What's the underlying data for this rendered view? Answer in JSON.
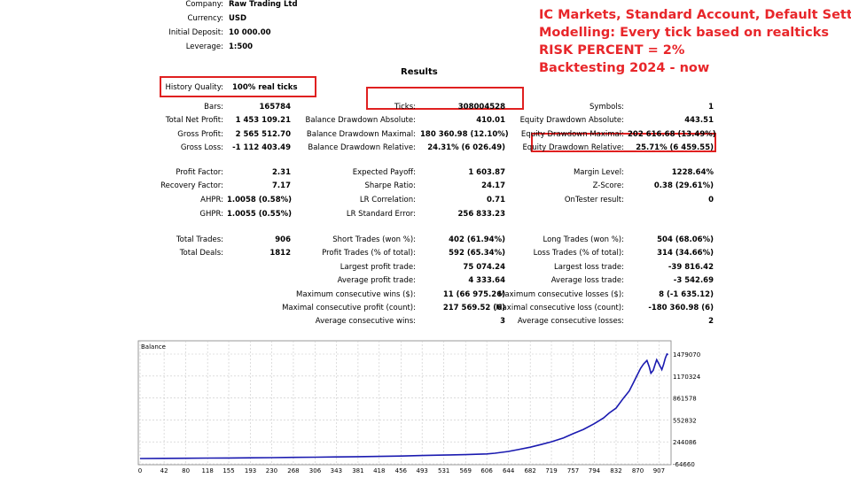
{
  "header": {
    "company_label": "Company:",
    "company": "Raw Trading Ltd",
    "currency_label": "Currency:",
    "currency": "USD",
    "deposit_label": "Initial Deposit:",
    "deposit": "10 000.00",
    "leverage_label": "Leverage:",
    "leverage": "1:500"
  },
  "notes": {
    "line1": "IC Markets, Standard Account, Default Setting",
    "line2": "Modelling: Every tick based on realticks",
    "line3": "RISK PERCENT = 2%",
    "line4": "Backtesting 2024 - now",
    "color": "#e8262a"
  },
  "results_title": "Results",
  "history_quality": {
    "label": "History Quality:",
    "value": "100% real ticks"
  },
  "col1": [
    {
      "label": "Bars:",
      "value": "165784"
    },
    {
      "label": "Total Net Profit:",
      "value": "1 453 109.21"
    },
    {
      "label": "Gross Profit:",
      "value": "2 565 512.70"
    },
    {
      "label": "Gross Loss:",
      "value": "-1 112 403.49"
    },
    {
      "label": "Profit Factor:",
      "value": "2.31"
    },
    {
      "label": "Recovery Factor:",
      "value": "7.17"
    },
    {
      "label": "AHPR:",
      "value": "1.0058 (0.58%)"
    },
    {
      "label": "GHPR:",
      "value": "1.0055 (0.55%)"
    },
    {
      "label": "Total Trades:",
      "value": "906"
    },
    {
      "label": "Total Deals:",
      "value": "1812"
    }
  ],
  "col2": [
    {
      "label": "Ticks:",
      "value": "308004528"
    },
    {
      "label": "Balance Drawdown Absolute:",
      "value": "410.01"
    },
    {
      "label": "Balance Drawdown Maximal:",
      "value": "180 360.98 (12.10%)"
    },
    {
      "label": "Balance Drawdown Relative:",
      "value": "24.31% (6 026.49)"
    },
    {
      "label": "Expected Payoff:",
      "value": "1 603.87"
    },
    {
      "label": "Sharpe Ratio:",
      "value": "24.17"
    },
    {
      "label": "LR Correlation:",
      "value": "0.71"
    },
    {
      "label": "LR Standard Error:",
      "value": "256 833.23"
    },
    {
      "label": "Short Trades (won %):",
      "value": "402 (61.94%)"
    },
    {
      "label": "Profit Trades (% of total):",
      "value": "592 (65.34%)"
    },
    {
      "label": "Largest profit trade:",
      "value": "75 074.24"
    },
    {
      "label": "Average profit trade:",
      "value": "4 333.64"
    },
    {
      "label": "Maximum consecutive wins ($):",
      "value": "11 (66 975.26)"
    },
    {
      "label": "Maximal consecutive profit (count):",
      "value": "217 569.52 (6)"
    },
    {
      "label": "Average consecutive wins:",
      "value": "3"
    }
  ],
  "col3": [
    {
      "label": "Symbols:",
      "value": "1"
    },
    {
      "label": "Equity Drawdown Absolute:",
      "value": "443.51"
    },
    {
      "label": "Equity Drawdown Maximal:",
      "value": "202 616.68 (13.49%)"
    },
    {
      "label": "Equity Drawdown Relative:",
      "value": "25.71% (6 459.55)"
    },
    {
      "label": "Margin Level:",
      "value": "1228.64%"
    },
    {
      "label": "Z-Score:",
      "value": "0.38 (29.61%)"
    },
    {
      "label": "OnTester result:",
      "value": "0"
    },
    {
      "label": "Long Trades (won %):",
      "value": "504 (68.06%)"
    },
    {
      "label": "Loss Trades (% of total):",
      "value": "314 (34.66%)"
    },
    {
      "label": "Largest loss trade:",
      "value": "-39 816.42"
    },
    {
      "label": "Average loss trade:",
      "value": "-3 542.69"
    },
    {
      "label": "Maximum consecutive losses ($):",
      "value": "8 (-1 635.12)"
    },
    {
      "label": "Maximal consecutive loss (count):",
      "value": "-180 360.98 (6)"
    },
    {
      "label": "Average consecutive losses:",
      "value": "2"
    }
  ],
  "chart_data": {
    "type": "line",
    "title": "Balance",
    "xlabel": "",
    "ylabel": "",
    "x_ticks": [
      "0",
      "42",
      "80",
      "118",
      "155",
      "193",
      "230",
      "268",
      "306",
      "343",
      "381",
      "418",
      "456",
      "493",
      "531",
      "569",
      "606",
      "644",
      "682",
      "719",
      "757",
      "794",
      "832",
      "870",
      "907"
    ],
    "y_ticks": [
      "1479070",
      "1170324",
      "861578",
      "552832",
      "244086",
      "-64660"
    ],
    "ylim": [
      -64660,
      1479070
    ],
    "xlim": [
      0,
      925
    ],
    "grid": true,
    "line_color": "#1a1ab0",
    "series": [
      {
        "x": [
          0,
          42,
          80,
          118,
          155,
          193,
          230,
          268,
          306,
          343,
          381,
          418,
          456,
          493,
          531,
          569,
          606,
          620,
          644,
          660,
          682,
          700,
          719,
          740,
          757,
          775,
          794,
          810,
          820,
          832,
          845,
          855,
          862,
          870,
          875,
          880,
          886,
          890,
          893,
          897,
          900,
          903,
          907,
          912,
          915,
          918,
          921,
          923
        ],
        "values": [
          10000,
          12000,
          14000,
          16000,
          18000,
          20000,
          23000,
          26000,
          29000,
          33000,
          36000,
          40000,
          45000,
          52000,
          58000,
          65000,
          75000,
          85000,
          110000,
          135000,
          170000,
          205000,
          245000,
          300000,
          360000,
          420000,
          500000,
          580000,
          650000,
          720000,
          860000,
          960000,
          1070000,
          1200000,
          1280000,
          1340000,
          1390000,
          1300000,
          1210000,
          1250000,
          1330000,
          1400000,
          1340000,
          1260000,
          1330000,
          1420000,
          1480000,
          1470000
        ]
      }
    ]
  }
}
